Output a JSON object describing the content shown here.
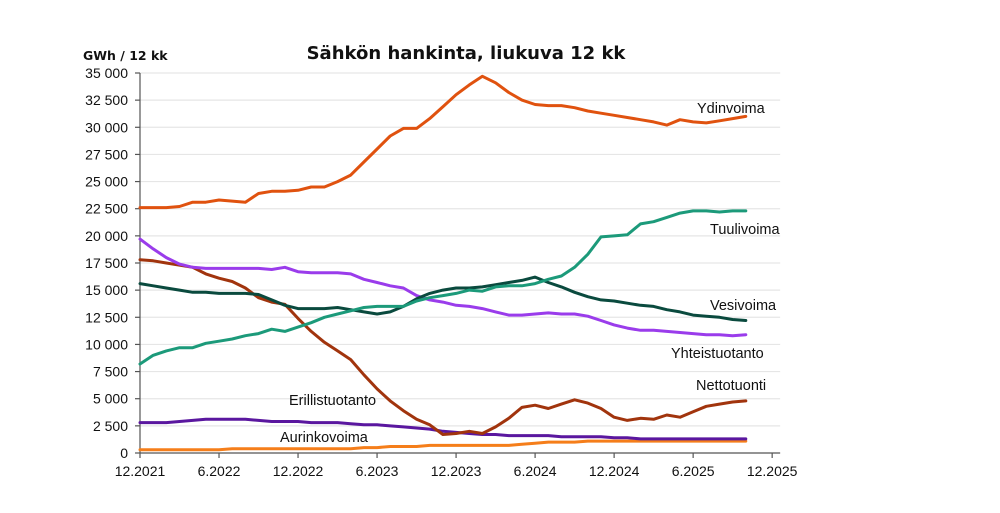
{
  "chart_data": {
    "type": "line",
    "title": "Sähkön hankinta, liukuva 12 kk",
    "ylabel": "GWh / 12 kk",
    "xlabel": "",
    "ylim": [
      0,
      35000
    ],
    "yticks": [
      0,
      2500,
      5000,
      7500,
      10000,
      12500,
      15000,
      17500,
      20000,
      22500,
      25000,
      27500,
      30000,
      32500,
      35000
    ],
    "ytick_labels": [
      "0",
      "2 500",
      "5 000",
      "7 500",
      "10 000",
      "12 500",
      "15 000",
      "17 500",
      "20 000",
      "22 500",
      "25 000",
      "27 500",
      "30 000",
      "32 500",
      "35 000"
    ],
    "xtick_labels": [
      "12.2021",
      "6.2022",
      "12.2022",
      "6.2023",
      "12.2023",
      "6.2024",
      "12.2024",
      "6.2025",
      "12.2025"
    ],
    "xlim_months": [
      0,
      48
    ],
    "x_start": "12.2021",
    "x_step": "1 month",
    "grid": "horizontal",
    "legend": "inline labels at line ends",
    "series": [
      {
        "name": "Ydinvoima",
        "color": "#E0520F",
        "values": [
          22600,
          22600,
          22600,
          22700,
          23100,
          23100,
          23300,
          23200,
          23100,
          23900,
          24100,
          24100,
          24200,
          24500,
          24500,
          25000,
          25600,
          26800,
          28000,
          29200,
          29900,
          29900,
          30800,
          31900,
          33000,
          33900,
          34700,
          34100,
          33200,
          32500,
          32100,
          32000,
          32000,
          31800,
          31500,
          31300,
          31100,
          30900,
          30700,
          30500,
          30200,
          30700,
          30500,
          30400,
          30600,
          30800,
          31000
        ]
      },
      {
        "name": "Tuulivoima",
        "color": "#1C9A7A",
        "values": [
          8200,
          9000,
          9400,
          9700,
          9700,
          10100,
          10300,
          10500,
          10800,
          11000,
          11400,
          11200,
          11600,
          12000,
          12500,
          12800,
          13100,
          13400,
          13500,
          13500,
          13500,
          14000,
          14300,
          14500,
          14700,
          15000,
          14900,
          15300,
          15400,
          15400,
          15600,
          16000,
          16300,
          17100,
          18300,
          19900,
          20000,
          20100,
          21100,
          21300,
          21700,
          22100,
          22300,
          22300,
          22200,
          22300,
          22300
        ]
      },
      {
        "name": "Vesivoima",
        "color": "#0A4A3E",
        "values": [
          15600,
          15400,
          15200,
          15000,
          14800,
          14800,
          14700,
          14700,
          14700,
          14600,
          14100,
          13600,
          13300,
          13300,
          13300,
          13400,
          13200,
          13000,
          12800,
          13000,
          13500,
          14200,
          14700,
          15000,
          15200,
          15200,
          15300,
          15500,
          15700,
          15900,
          16200,
          15700,
          15300,
          14800,
          14400,
          14100,
          14000,
          13800,
          13600,
          13500,
          13200,
          13000,
          12700,
          12600,
          12500,
          12300,
          12200
        ]
      },
      {
        "name": "Yhteistuotanto",
        "color": "#9A3CEB",
        "values": [
          19700,
          18800,
          18000,
          17400,
          17100,
          17000,
          17000,
          17000,
          17000,
          17000,
          16900,
          17100,
          16700,
          16600,
          16600,
          16600,
          16500,
          16000,
          15700,
          15400,
          15200,
          14500,
          14100,
          13900,
          13600,
          13500,
          13300,
          13000,
          12700,
          12700,
          12800,
          12900,
          12800,
          12800,
          12600,
          12200,
          11800,
          11500,
          11300,
          11300,
          11200,
          11100,
          11000,
          10900,
          10900,
          10800,
          10900
        ]
      },
      {
        "name": "Nettotuonti",
        "color": "#A1340D",
        "values": [
          17800,
          17700,
          17500,
          17300,
          17100,
          16500,
          16100,
          15800,
          15200,
          14300,
          13900,
          13700,
          12400,
          11200,
          10200,
          9400,
          8600,
          7200,
          5900,
          4800,
          3900,
          3100,
          2600,
          1700,
          1800,
          2000,
          1800,
          2400,
          3200,
          4200,
          4400,
          4100,
          4500,
          4900,
          4600,
          4100,
          3300,
          3000,
          3200,
          3100,
          3500,
          3300,
          3800,
          4300,
          4500,
          4700,
          4800
        ]
      },
      {
        "name": "Erillistuotanto",
        "color": "#5A179F",
        "values": [
          2800,
          2800,
          2800,
          2900,
          3000,
          3100,
          3100,
          3100,
          3100,
          3000,
          2900,
          2900,
          2900,
          2800,
          2800,
          2800,
          2700,
          2600,
          2600,
          2500,
          2400,
          2300,
          2200,
          2000,
          1900,
          1800,
          1700,
          1700,
          1600,
          1600,
          1600,
          1600,
          1500,
          1500,
          1500,
          1500,
          1400,
          1400,
          1300,
          1300,
          1300,
          1300,
          1300,
          1300,
          1300,
          1300,
          1300
        ]
      },
      {
        "name": "Aurinkovoima",
        "color": "#F57E1A",
        "values": [
          300,
          300,
          300,
          300,
          300,
          300,
          300,
          400,
          400,
          400,
          400,
          400,
          400,
          400,
          400,
          400,
          400,
          500,
          500,
          600,
          600,
          600,
          700,
          700,
          700,
          700,
          700,
          700,
          700,
          800,
          900,
          1000,
          1000,
          1000,
          1100,
          1100,
          1100,
          1100,
          1100,
          1100,
          1100,
          1100,
          1100,
          1100,
          1100,
          1100,
          1100
        ]
      }
    ],
    "annotations": [
      {
        "text": "Ydinvoima",
        "series": "Ydinvoima"
      },
      {
        "text": "Tuulivoima",
        "series": "Tuulivoima"
      },
      {
        "text": "Vesivoima",
        "series": "Vesivoima"
      },
      {
        "text": "Yhteistuotanto",
        "series": "Yhteistuotanto"
      },
      {
        "text": "Nettotuonti",
        "series": "Nettotuonti"
      },
      {
        "text": "Erillistuotanto",
        "series": "Erillistuotanto"
      },
      {
        "text": "Aurinkovoima",
        "series": "Aurinkovoima"
      }
    ]
  }
}
